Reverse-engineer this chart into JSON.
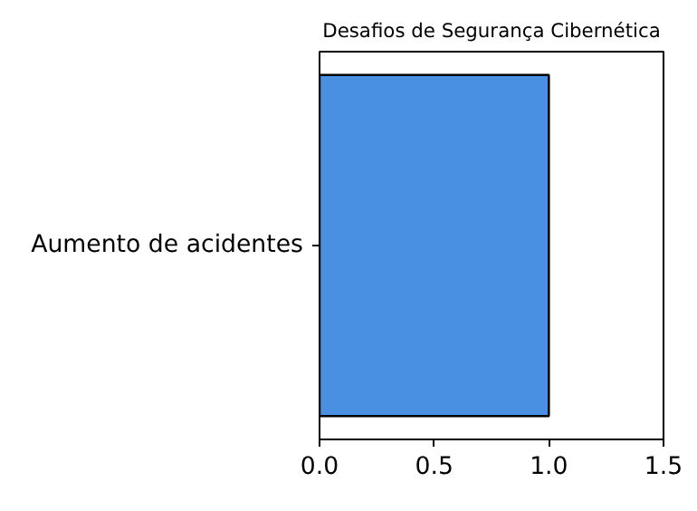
{
  "chart_data": {
    "type": "bar",
    "orientation": "horizontal",
    "title": "Desafios de Segurança Cibernética",
    "categories": [
      "Aumento de acidentes"
    ],
    "values": [
      1.0
    ],
    "color": "#4a90e2",
    "xlim": [
      0,
      1.5
    ],
    "xticks": [
      {
        "value": 0,
        "label": "0.0"
      },
      {
        "value": 0.5,
        "label": "0.5"
      },
      {
        "value": 1.0,
        "label": "1.0"
      },
      {
        "value": 1.5,
        "label": "1.5"
      }
    ],
    "grid": false
  }
}
